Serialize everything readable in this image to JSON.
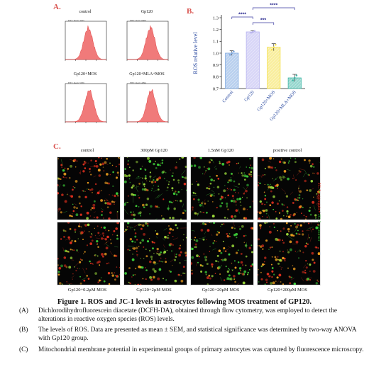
{
  "panels": {
    "a": {
      "letter": "A.",
      "histograms": [
        {
          "title": "control",
          "fitc": "FITC mean: 3265"
        },
        {
          "title": "Gp120",
          "fitc": "FITC mean: 6660"
        },
        {
          "title": "Gp120+MOS",
          "fitc": "FITC mean: 5636"
        },
        {
          "title": "Gp120+MLA+MOS",
          "fitc": "FITC mean: 4094"
        }
      ]
    },
    "b": {
      "letter": "B.",
      "ylabel": "ROS relative level"
    },
    "c": {
      "letter": "C.",
      "top_labels": [
        "control",
        "300pM Gp120",
        "1.5nM Gp120",
        "positive control"
      ],
      "bottom_labels": [
        "Gp120+0.2μM MOS",
        "Gp120+2μM MOS",
        "Gp120+20μM MOS",
        "Gp120+200μM MOS"
      ],
      "side_label_red": "JC-1 aggregate",
      "side_label_sep": "/",
      "side_label_green": "JC-1 monomer"
    }
  },
  "chart_data": {
    "type": "bar",
    "categories": [
      "Control",
      "Gp120",
      "Gp120+MOS",
      "Gp120+MLA+MOS"
    ],
    "values": [
      1.0,
      1.18,
      1.05,
      0.79
    ],
    "errors": [
      0.02,
      0.01,
      0.03,
      0.03
    ],
    "colors": [
      "#7fa9e0",
      "#b8b4f0",
      "#f4e04d",
      "#3fb6a6"
    ],
    "ylabel": "ROS relative level",
    "ylim": [
      0.7,
      1.3
    ],
    "yticks": [
      0.7,
      0.8,
      0.9,
      1.0,
      1.1,
      1.2,
      1.3
    ],
    "ytick_labels": [
      "0.7",
      "0.8",
      "0.9",
      "1.0",
      "1.1",
      "1.2",
      "1.3"
    ],
    "significance": [
      {
        "from": 0,
        "to": 1,
        "label": "****"
      },
      {
        "from": 1,
        "to": 2,
        "label": "***"
      },
      {
        "from": 1,
        "to": 3,
        "label": "****"
      }
    ],
    "grid": false
  },
  "caption": {
    "title": "Figure 1. ROS and JC-1 levels in astrocytes following MOS treatment of GP120.",
    "items": [
      {
        "key": "(A)",
        "text": "Dichlorodihydrofluorescein diacetate (DCFH-DA), obtained through flow cytometry, was employed to detect the alterations in reactive oxygen species (ROS) levels."
      },
      {
        "key": "(B)",
        "text": "The levels of ROS. Data are presented as mean ± SEM, and statistical significance was determined by two-way ANOVA with Gp120 group."
      },
      {
        "key": "(C)",
        "text": "Mitochondrial membrane potential in experimental groups of primary astrocytes was captured by fluorescence microscopy."
      }
    ]
  }
}
